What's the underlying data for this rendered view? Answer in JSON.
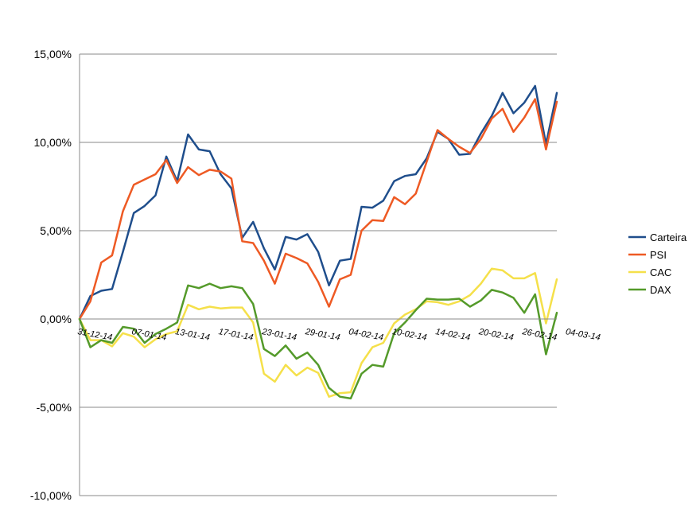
{
  "chart_data": {
    "type": "line",
    "title": "",
    "xlabel": "",
    "ylabel": "",
    "ylim": [
      -10,
      15
    ],
    "y_tick_values": [
      -10,
      -5,
      0,
      5,
      10,
      15
    ],
    "y_tick_labels": [
      "-10,00%",
      "-5,00%",
      "0,00%",
      "5,00%",
      "10,00%",
      "15,00%"
    ],
    "grid": "horizontal",
    "legend_position": "right",
    "x_tick_labels": [
      "31-12-14",
      "07-01-14",
      "13-01-14",
      "17-01-14",
      "23-01-14",
      "29-01-14",
      "04-02-14",
      "10-02-14",
      "14-02-14",
      "20-02-14",
      "26-02-14",
      "04-03-14"
    ],
    "x_tick_indices": [
      0,
      5,
      9,
      13,
      17,
      21,
      25,
      29,
      33,
      37,
      41,
      45
    ],
    "series": [
      {
        "name": "Carteira",
        "color": "#1f4e8c",
        "values": [
          0,
          1.3,
          1.6,
          1.7,
          3.8,
          6.0,
          6.4,
          7.0,
          9.2,
          7.8,
          10.45,
          9.6,
          9.5,
          8.2,
          7.4,
          4.6,
          5.5,
          4.0,
          2.8,
          4.65,
          4.5,
          4.8,
          3.8,
          1.9,
          3.3,
          3.4,
          6.35,
          6.3,
          6.7,
          7.8,
          8.1,
          8.2,
          9.1,
          10.6,
          10.2,
          9.3,
          9.35,
          10.5,
          11.5,
          12.8,
          11.65,
          12.25,
          13.2,
          9.9,
          12.8
        ]
      },
      {
        "name": "PSI",
        "color": "#ee5a24",
        "values": [
          0,
          1.0,
          3.2,
          3.6,
          6.1,
          7.6,
          7.9,
          8.2,
          9.0,
          7.7,
          8.6,
          8.15,
          8.45,
          8.35,
          7.95,
          4.4,
          4.3,
          3.3,
          2.0,
          3.7,
          3.45,
          3.15,
          2.1,
          0.7,
          2.25,
          2.5,
          5.0,
          5.6,
          5.55,
          6.9,
          6.5,
          7.1,
          8.9,
          10.7,
          10.2,
          9.75,
          9.4,
          10.2,
          11.35,
          11.9,
          10.6,
          11.4,
          12.45,
          9.6,
          12.3
        ]
      },
      {
        "name": "CAC",
        "color": "#f5e04a",
        "values": [
          0,
          -1.2,
          -1.2,
          -1.55,
          -0.8,
          -1.0,
          -1.6,
          -1.15,
          -0.85,
          -0.7,
          0.8,
          0.55,
          0.7,
          0.6,
          0.65,
          0.65,
          -0.2,
          -3.1,
          -3.55,
          -2.6,
          -3.2,
          -2.75,
          -3.05,
          -4.4,
          -4.2,
          -4.15,
          -2.5,
          -1.6,
          -1.35,
          -0.25,
          0.25,
          0.55,
          1.0,
          0.95,
          0.8,
          1.0,
          1.35,
          2.0,
          2.85,
          2.75,
          2.3,
          2.3,
          2.6,
          -0.25,
          2.25
        ]
      },
      {
        "name": "DAX",
        "color": "#549a2a",
        "values": [
          0,
          -1.6,
          -1.2,
          -1.35,
          -0.45,
          -0.55,
          -1.35,
          -0.85,
          -0.55,
          -0.2,
          1.9,
          1.75,
          2.0,
          1.75,
          1.85,
          1.75,
          0.85,
          -1.7,
          -2.1,
          -1.5,
          -2.25,
          -1.9,
          -2.6,
          -3.9,
          -4.4,
          -4.5,
          -3.1,
          -2.6,
          -2.7,
          -0.8,
          -0.2,
          0.5,
          1.15,
          1.1,
          1.1,
          1.15,
          0.7,
          1.05,
          1.65,
          1.5,
          1.2,
          0.35,
          1.4,
          -2.0,
          0.35
        ]
      }
    ]
  }
}
